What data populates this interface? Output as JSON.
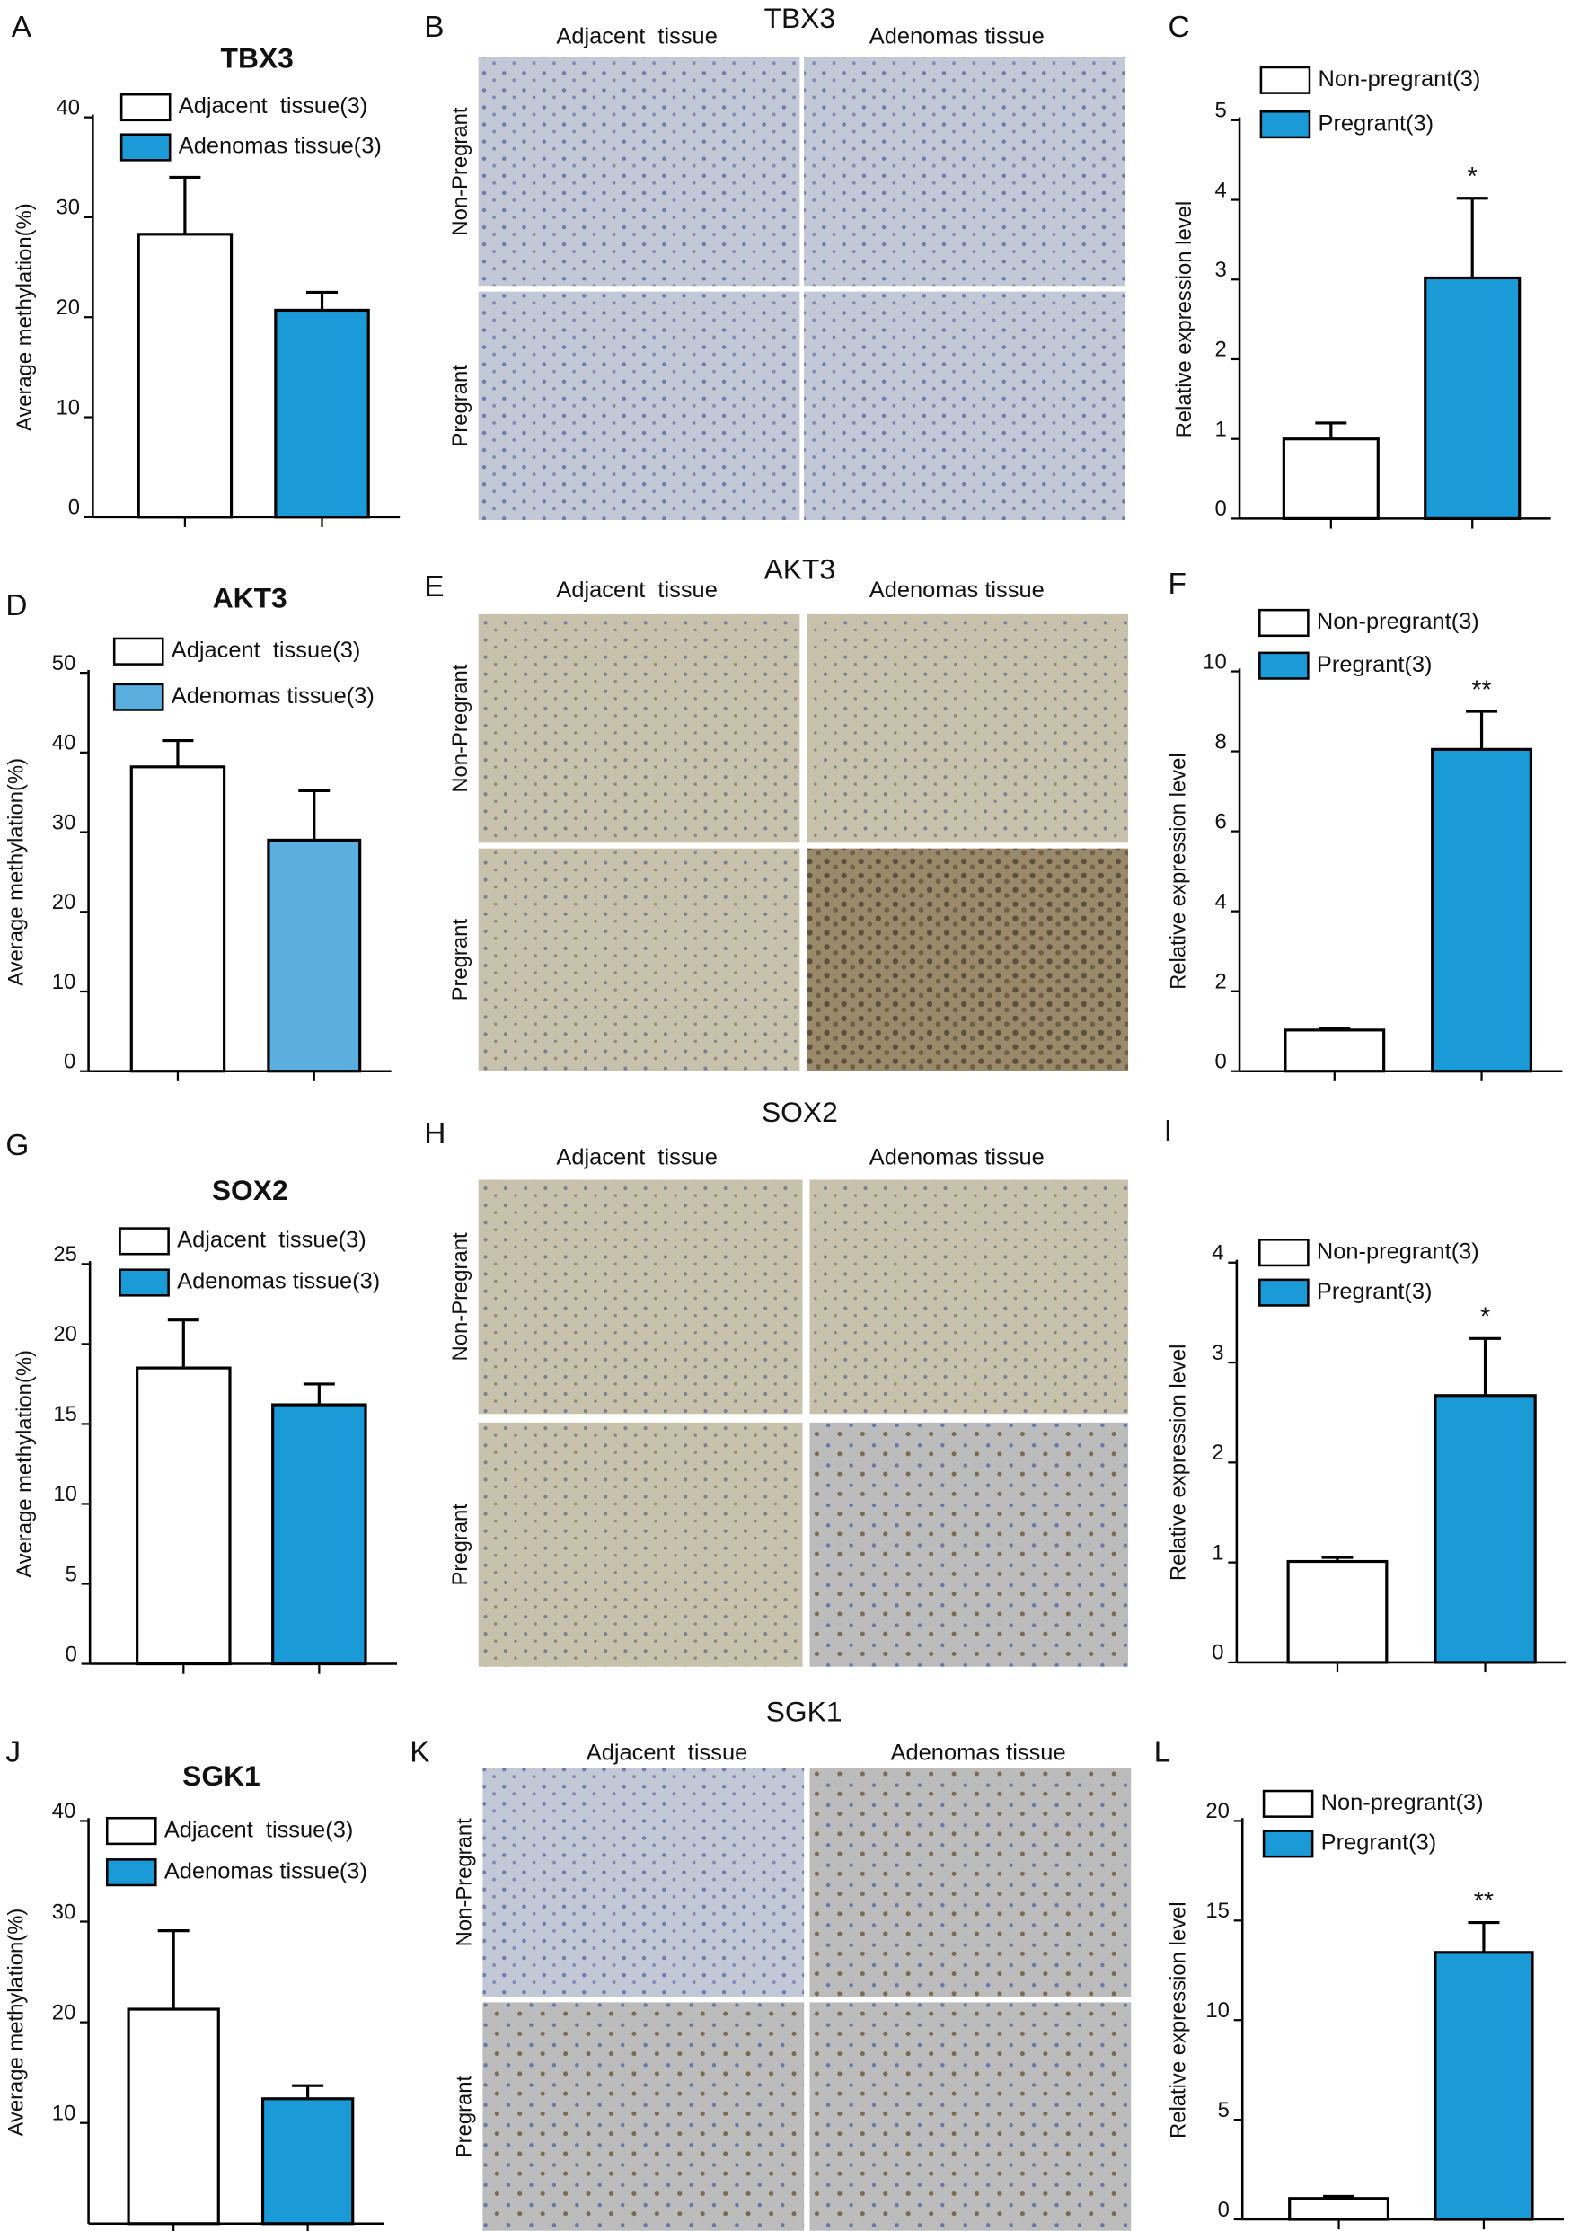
{
  "chart_data": [
    {
      "type": "bar",
      "label": "A",
      "title": "TBX3",
      "ylabel": "Average methylation(%)",
      "ylim": [
        0,
        40
      ],
      "yticks": [
        0,
        10,
        20,
        30,
        40
      ],
      "series": [
        {
          "name": "Adjacent  tissue(3)",
          "color": "#ffffff",
          "values": [
            28.3
          ],
          "errors": [
            5.7
          ]
        },
        {
          "name": "Adenomas tissue(3)",
          "color": "#1a9bd7",
          "values": [
            20.7
          ],
          "errors": [
            1.8
          ]
        }
      ]
    },
    {
      "type": "bar",
      "label": "C",
      "ylabel": "Relative expression level",
      "ylim": [
        0,
        5
      ],
      "yticks": [
        0,
        1,
        2,
        3,
        4,
        5
      ],
      "annotation": "*",
      "series": [
        {
          "name": "Non-pregrant(3)",
          "color": "#ffffff",
          "values": [
            1.0
          ],
          "errors": [
            0.2
          ]
        },
        {
          "name": "Pregrant(3)",
          "color": "#1a9bd7",
          "values": [
            3.02
          ],
          "errors": [
            1.0
          ]
        }
      ]
    },
    {
      "type": "bar",
      "label": "D",
      "title": "AKT3",
      "ylabel": "Average methylation(%)",
      "ylim": [
        0,
        50
      ],
      "yticks": [
        0,
        10,
        20,
        30,
        40,
        50
      ],
      "series": [
        {
          "name": "Adjacent  tissue(3)",
          "color": "#ffffff",
          "values": [
            38.2
          ],
          "errors": [
            3.3
          ]
        },
        {
          "name": "Adenomas tissue(3)",
          "color": "#5aafde",
          "values": [
            29.0
          ],
          "errors": [
            6.2
          ]
        }
      ]
    },
    {
      "type": "bar",
      "label": "F",
      "ylabel": "Relative expression level",
      "ylim": [
        0,
        10
      ],
      "yticks": [
        0,
        2,
        4,
        6,
        8,
        10
      ],
      "annotation": "**",
      "series": [
        {
          "name": "Non-pregrant(3)",
          "color": "#ffffff",
          "values": [
            1.03
          ],
          "errors": [
            0.05
          ]
        },
        {
          "name": "Pregrant(3)",
          "color": "#1a9bd7",
          "values": [
            8.05
          ],
          "errors": [
            0.95
          ]
        }
      ]
    },
    {
      "type": "bar",
      "label": "G",
      "title": "SOX2",
      "ylabel": "Average methylation(%)",
      "ylim": [
        0,
        25
      ],
      "yticks": [
        0,
        5,
        10,
        15,
        20,
        25
      ],
      "series": [
        {
          "name": "Adjacent  tissue(3)",
          "color": "#ffffff",
          "values": [
            18.5
          ],
          "errors": [
            3.0
          ]
        },
        {
          "name": "Adenomas tissue(3)",
          "color": "#1a9bd7",
          "values": [
            16.2
          ],
          "errors": [
            1.3
          ]
        }
      ]
    },
    {
      "type": "bar",
      "label": "I",
      "ylabel": "Relative expression level",
      "ylim": [
        0,
        4
      ],
      "yticks": [
        0,
        1,
        2,
        3,
        4
      ],
      "annotation": "*",
      "series": [
        {
          "name": "Non-pregrant(3)",
          "color": "#ffffff",
          "values": [
            1.01
          ],
          "errors": [
            0.04
          ]
        },
        {
          "name": "Pregrant(3)",
          "color": "#1a9bd7",
          "values": [
            2.67
          ],
          "errors": [
            0.57
          ]
        }
      ]
    },
    {
      "type": "bar",
      "label": "J",
      "title": "SGK1",
      "ylabel": "Average methylation(%)",
      "ylim": [
        0,
        40
      ],
      "yticks": [
        10,
        20,
        30,
        40
      ],
      "series": [
        {
          "name": "Adjacent  tissue(3)",
          "color": "#ffffff",
          "values": [
            21.3
          ],
          "errors": [
            7.8
          ]
        },
        {
          "name": "Adenomas tissue(3)",
          "color": "#1a9bd7",
          "values": [
            12.4
          ],
          "errors": [
            1.3
          ]
        }
      ]
    },
    {
      "type": "bar",
      "label": "L",
      "ylabel": "Relative expression level",
      "ylim": [
        0,
        20
      ],
      "yticks": [
        0,
        5,
        10,
        15,
        20
      ],
      "annotation": "**",
      "series": [
        {
          "name": "Non-pregrant(3)",
          "color": "#ffffff",
          "values": [
            1.05
          ],
          "errors": [
            0.1
          ]
        },
        {
          "name": "Pregrant(3)",
          "color": "#1a9bd7",
          "values": [
            13.4
          ],
          "errors": [
            1.5
          ]
        }
      ]
    }
  ],
  "image_panels": [
    {
      "label": "B",
      "title": "TBX3",
      "columns": [
        "Adjacent  tissue",
        "Adenomas tissue"
      ],
      "rows": [
        "Non-Pregrant",
        "Pregrant"
      ]
    },
    {
      "label": "E",
      "title": "AKT3",
      "columns": [
        "Adjacent  tissue",
        "Adenomas tissue"
      ],
      "rows": [
        "Non-Pregrant",
        "Pregrant"
      ]
    },
    {
      "label": "H",
      "title": "SOX2",
      "columns": [
        "Adjacent  tissue",
        "Adenomas tissue"
      ],
      "rows": [
        "Non-Pregrant",
        "Pregrant"
      ]
    },
    {
      "label": "K",
      "title": "SGK1",
      "columns": [
        "Adjacent  tissue",
        "Adenomas tissue"
      ],
      "rows": [
        "Non-Pregrant",
        "Pregrant"
      ]
    }
  ]
}
